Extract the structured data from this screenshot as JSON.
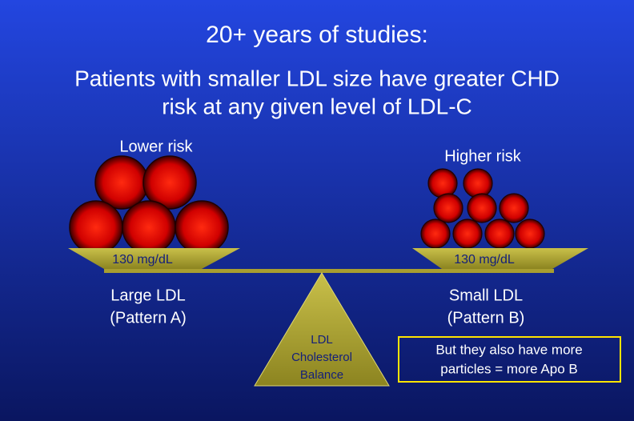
{
  "title": "20+ years of studies:",
  "subtitle": [
    "Patients with smaller LDL size have greater CHD",
    "risk at any given level of LDL-C"
  ],
  "left": {
    "risk": "Lower risk",
    "pan_label": "130 mg/dL",
    "caption": [
      "Large LDL",
      "(Pattern A)"
    ]
  },
  "right": {
    "risk": "Higher risk",
    "pan_label": "130 mg/dL",
    "caption": [
      "Small LDL",
      "(Pattern B)"
    ]
  },
  "fulcrum": [
    "LDL",
    "Cholesterol",
    "Balance"
  ],
  "note": [
    "But they also have more",
    "particles = more Apo B"
  ]
}
